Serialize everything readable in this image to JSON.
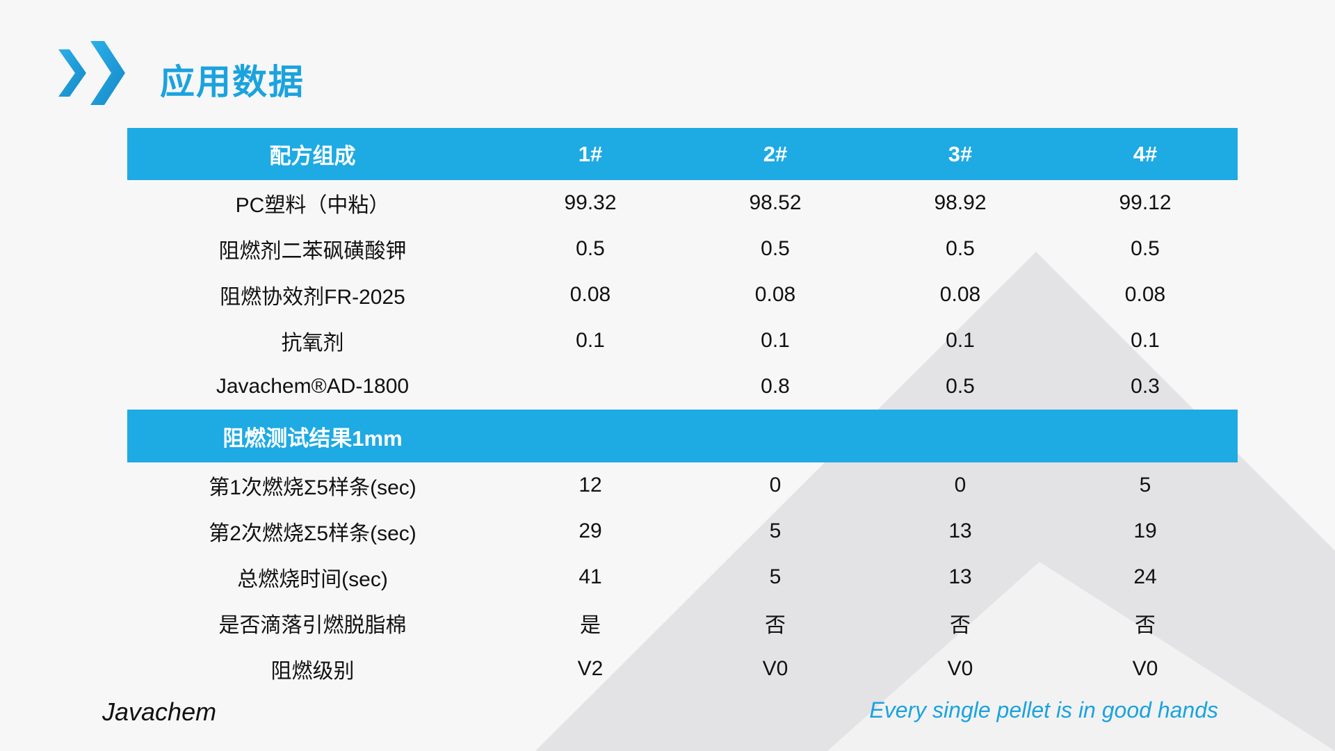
{
  "slide": {
    "title": "应用数据",
    "brand": "Javachem",
    "slogan": "Every single pellet is in good hands"
  },
  "colors": {
    "accent": "#1eaae3",
    "background": "#f7f7f7",
    "shape": "#e3e3e5"
  },
  "icons": {
    "logo": "double-chevron-icon"
  },
  "table": {
    "header": [
      "配方组成",
      "1#",
      "2#",
      "3#",
      "4#"
    ],
    "formula_rows": [
      [
        "PC塑料（中粘）",
        "99.32",
        "98.52",
        "98.92",
        "99.12"
      ],
      [
        "阻燃剂二苯砜磺酸钾",
        "0.5",
        "0.5",
        "0.5",
        "0.5"
      ],
      [
        "阻燃协效剂FR-2025",
        "0.08",
        "0.08",
        "0.08",
        "0.08"
      ],
      [
        "抗氧剂",
        "0.1",
        "0.1",
        "0.1",
        "0.1"
      ],
      [
        "Javachem®AD-1800",
        "",
        "0.8",
        "0.5",
        "0.3"
      ]
    ],
    "section_title": "阻燃测试结果1mm",
    "result_rows": [
      [
        "第1次燃烧Σ5样条(sec)",
        "12",
        "0",
        "0",
        "5"
      ],
      [
        "第2次燃烧Σ5样条(sec)",
        "29",
        "5",
        "13",
        "19"
      ],
      [
        "总燃烧时间(sec)",
        "41",
        "5",
        "13",
        "24"
      ],
      [
        "是否滴落引燃脱脂棉",
        "是",
        "否",
        "否",
        "否"
      ],
      [
        "阻燃级别",
        "V2",
        "V0",
        "V0",
        "V0"
      ]
    ]
  }
}
